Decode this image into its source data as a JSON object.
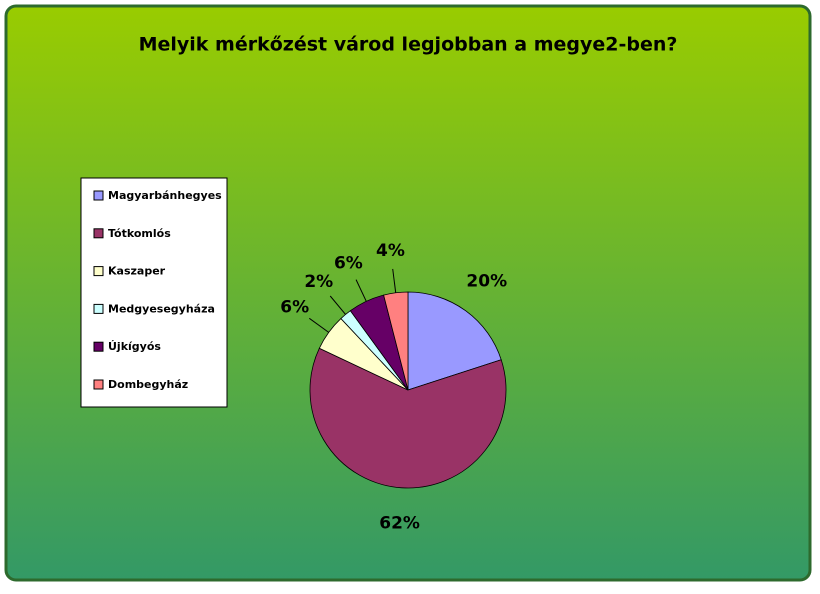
{
  "chart_data": {
    "type": "pie",
    "title": "Melyik mérkőzést várod legjobban a megye2-ben?",
    "categories": [
      "Magyarbánhegyes",
      "Tótkomlós",
      "Kaszaper",
      "Medgyesegyháza",
      "Újkígyós",
      "Dombegyház"
    ],
    "values": [
      20,
      62,
      6,
      2,
      6,
      4
    ],
    "value_labels": [
      "20%",
      "62%",
      "6%",
      "2%",
      "6%",
      "4%"
    ],
    "colors": [
      "#9999ff",
      "#993366",
      "#ffffcc",
      "#ccffff",
      "#660066",
      "#ff8080"
    ],
    "legend": "left"
  }
}
